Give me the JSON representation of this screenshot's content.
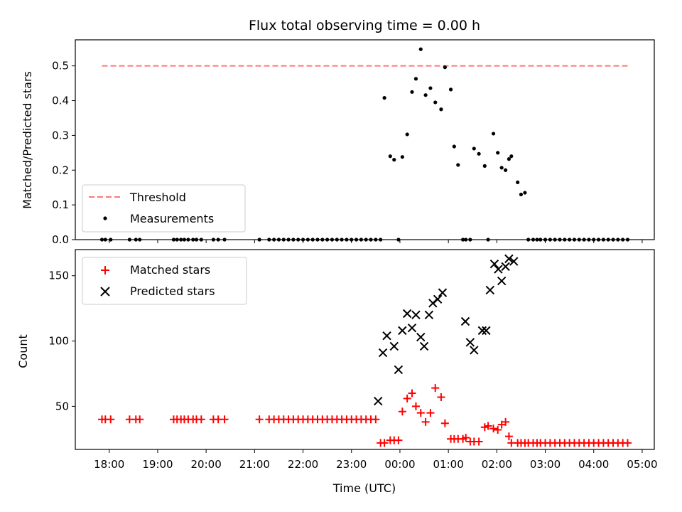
{
  "chart_data": {
    "type": "scatter",
    "title": "Flux total observing time = 0.00 h",
    "xlabel": "Time (UTC)",
    "x_ticks": [
      "18:00",
      "19:00",
      "20:00",
      "21:00",
      "22:00",
      "23:00",
      "00:00",
      "01:00",
      "02:00",
      "03:00",
      "04:00",
      "05:00"
    ],
    "x_range_hours": [
      17.3,
      29.25
    ],
    "panels": [
      {
        "ylabel": "Matched/Predicted stars",
        "ylim": [
          0.0,
          0.575
        ],
        "y_ticks": [
          "0.0",
          "0.1",
          "0.2",
          "0.3",
          "0.4",
          "0.5"
        ],
        "legend": "lower-left",
        "series": [
          {
            "name": "Threshold",
            "style": "dashed-line",
            "color": "#ff7777",
            "x": [
              17.85,
              28.7
            ],
            "y": [
              0.5,
              0.5
            ]
          },
          {
            "name": "Measurements",
            "style": "dot",
            "color": "#000000",
            "x": [
              17.85,
              17.92,
              18.03,
              18.42,
              18.55,
              18.63,
              19.33,
              19.4,
              19.48,
              19.55,
              19.63,
              19.73,
              19.8,
              19.9,
              20.15,
              20.25,
              20.38,
              21.1,
              21.3,
              21.4,
              21.5,
              21.6,
              21.7,
              21.8,
              21.9,
              22.0,
              22.1,
              22.2,
              22.3,
              22.4,
              22.5,
              22.6,
              22.7,
              22.8,
              22.9,
              23.0,
              23.1,
              23.2,
              23.3,
              23.4,
              23.5,
              23.6,
              23.68,
              23.8,
              23.88,
              23.97,
              24.05,
              24.15,
              24.25,
              24.33,
              24.43,
              24.53,
              24.63,
              24.73,
              24.85,
              24.93,
              25.05,
              25.12,
              25.2,
              25.3,
              25.36,
              25.45,
              25.53,
              25.63,
              25.75,
              25.82,
              25.93,
              26.02,
              26.1,
              26.18,
              26.25,
              26.3,
              26.43,
              26.5,
              26.58,
              26.65,
              26.75,
              26.83,
              26.9,
              27.0,
              27.1,
              27.2,
              27.3,
              27.4,
              27.5,
              27.6,
              27.7,
              27.8,
              27.9,
              28.0,
              28.1,
              28.2,
              28.3,
              28.4,
              28.5,
              28.6,
              28.7
            ],
            "y": [
              0,
              0,
              0,
              0,
              0,
              0,
              0,
              0,
              0,
              0,
              0,
              0,
              0,
              0,
              0,
              0,
              0,
              0,
              0,
              0,
              0,
              0,
              0,
              0,
              0,
              0,
              0,
              0,
              0,
              0,
              0,
              0,
              0,
              0,
              0,
              0,
              0,
              0,
              0,
              0,
              0,
              0,
              0.408,
              0.24,
              0.23,
              0,
              0.238,
              0.303,
              0.425,
              0.463,
              0.548,
              0.416,
              0.436,
              0.395,
              0.375,
              0.496,
              0.432,
              0.268,
              0.215,
              0,
              0,
              0,
              0.262,
              0.247,
              0.212,
              0,
              0.305,
              0.25,
              0.207,
              0.2,
              0.232,
              0.24,
              0.165,
              0.13,
              0.135,
              0,
              0,
              0,
              0,
              0,
              0,
              0,
              0,
              0,
              0,
              0,
              0,
              0,
              0,
              0,
              0,
              0,
              0,
              0,
              0,
              0,
              0
            ]
          }
        ]
      },
      {
        "ylabel": "Count",
        "ylim": [
          17,
          170
        ],
        "y_ticks": [
          "50",
          "100",
          "150"
        ],
        "legend": "top-left",
        "series": [
          {
            "name": "Matched stars",
            "marker": "plus",
            "color": "#ff0000",
            "x": [
              17.85,
              17.92,
              18.03,
              18.42,
              18.55,
              18.63,
              19.33,
              19.4,
              19.48,
              19.55,
              19.63,
              19.73,
              19.8,
              19.9,
              20.15,
              20.25,
              20.38,
              21.1,
              21.3,
              21.4,
              21.5,
              21.6,
              21.7,
              21.8,
              21.9,
              22.0,
              22.1,
              22.2,
              22.3,
              22.4,
              22.5,
              22.6,
              22.7,
              22.8,
              22.9,
              23.0,
              23.1,
              23.2,
              23.3,
              23.4,
              23.5,
              23.6,
              23.68,
              23.8,
              23.88,
              23.97,
              24.05,
              24.15,
              24.25,
              24.33,
              24.43,
              24.53,
              24.63,
              24.73,
              24.85,
              24.93,
              25.05,
              25.12,
              25.2,
              25.3,
              25.36,
              25.45,
              25.53,
              25.63,
              25.75,
              25.82,
              25.93,
              26.02,
              26.1,
              26.18,
              26.25,
              26.3,
              26.43,
              26.5,
              26.58,
              26.65,
              26.75,
              26.83,
              26.9,
              27.0,
              27.1,
              27.2,
              27.3,
              27.4,
              27.5,
              27.6,
              27.7,
              27.8,
              27.9,
              28.0,
              28.1,
              28.2,
              28.3,
              28.4,
              28.5,
              28.6,
              28.7
            ],
            "y": [
              40,
              40,
              40,
              40,
              40,
              40,
              40,
              40,
              40,
              40,
              40,
              40,
              40,
              40,
              40,
              40,
              40,
              40,
              40,
              40,
              40,
              40,
              40,
              40,
              40,
              40,
              40,
              40,
              40,
              40,
              40,
              40,
              40,
              40,
              40,
              40,
              40,
              40,
              40,
              40,
              40,
              22,
              22,
              24,
              24,
              24,
              46,
              56,
              60,
              50,
              45,
              38,
              45,
              64,
              57,
              37,
              25,
              25,
              25,
              25,
              26,
              23,
              23,
              23,
              34,
              35,
              33,
              32,
              36,
              38,
              27,
              22,
              22,
              22,
              22,
              22,
              22,
              22,
              22,
              22,
              22,
              22,
              22,
              22,
              22,
              22,
              22,
              22,
              22,
              22,
              22,
              22,
              22,
              22,
              22,
              22,
              22
            ]
          },
          {
            "name": "Predicted stars",
            "marker": "x",
            "color": "#000000",
            "x": [
              23.55,
              23.65,
              23.73,
              23.88,
              23.97,
              24.05,
              24.15,
              24.25,
              24.33,
              24.43,
              24.5,
              24.6,
              24.68,
              24.78,
              24.88,
              25.35,
              25.45,
              25.53,
              25.7,
              25.78,
              25.86,
              25.95,
              26.03,
              26.1,
              26.18,
              26.25,
              26.35
            ],
            "y": [
              54,
              91,
              104,
              96,
              78,
              108,
              121,
              110,
              120,
              103,
              96,
              120,
              129,
              132,
              137,
              115,
              99,
              93,
              108,
              108,
              139,
              159,
              155,
              146,
              157,
              163,
              161
            ]
          }
        ]
      }
    ]
  }
}
